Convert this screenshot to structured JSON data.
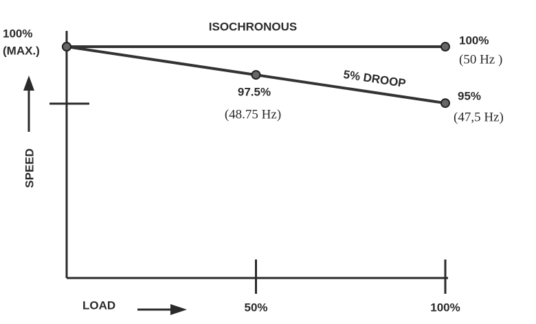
{
  "chart_data": {
    "type": "line",
    "x_label": "LOAD",
    "y_label": "SPEED",
    "xlim": [
      0,
      100
    ],
    "ylim": [
      79.5,
      101.4
    ],
    "xticks": [
      {
        "value": 50,
        "label": "50%"
      },
      {
        "value": 100,
        "label": "100%"
      }
    ],
    "color": "#333333",
    "series": [
      {
        "name": "ISOCHRONOUS",
        "x": [
          0,
          100
        ],
        "values": [
          100,
          100
        ],
        "value_labels": [
          "100%",
          "100%"
        ],
        "sub_labels": [
          "(MAX.)",
          "(50 Hz )"
        ]
      },
      {
        "name": "5% DROOP",
        "x": [
          0,
          50,
          100
        ],
        "values": [
          100,
          97.5,
          95
        ],
        "value_labels": [
          null,
          "97.5%",
          "95%"
        ],
        "sub_labels": [
          null,
          "(48.75 Hz)",
          "(47,5 Hz)"
        ]
      }
    ]
  }
}
